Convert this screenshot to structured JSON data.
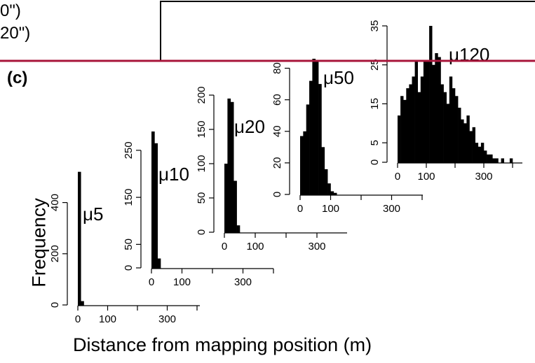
{
  "header": {
    "fragment_line1": "0\")",
    "fragment_line2": "20\")",
    "accent_line_color": "#a8153a"
  },
  "panel_label": "(c)",
  "ylabel": "Frequency",
  "xlabel": "Distance from mapping position (m)",
  "chart_data": [
    {
      "type": "bar",
      "name": "μ5",
      "title": "μ5",
      "bin_width": 10,
      "x": [
        0,
        10
      ],
      "values": [
        520,
        15
      ],
      "xlim": [
        0,
        400
      ],
      "ylim": [
        0,
        530
      ],
      "xticks": [
        0,
        100,
        300
      ],
      "xtick_labels": [
        "0",
        "100",
        "300"
      ],
      "yticks": [
        0,
        200,
        400
      ],
      "ytick_labels": [
        "0",
        "200",
        "400"
      ]
    },
    {
      "type": "bar",
      "name": "μ10",
      "title": "μ10",
      "bin_width": 10,
      "x": [
        0,
        10,
        20
      ],
      "values": [
        290,
        265,
        20
      ],
      "xlim": [
        0,
        400
      ],
      "ylim": [
        0,
        290
      ],
      "xticks": [
        0,
        100,
        300
      ],
      "xtick_labels": [
        "0",
        "100",
        "300"
      ],
      "yticks": [
        0,
        50,
        150,
        250
      ],
      "ytick_labels": [
        "0",
        "50",
        "150",
        "250"
      ]
    },
    {
      "type": "bar",
      "name": "μ20",
      "title": "μ20",
      "bin_width": 10,
      "x": [
        0,
        10,
        20,
        30,
        40
      ],
      "values": [
        100,
        195,
        190,
        75,
        10
      ],
      "xlim": [
        0,
        400
      ],
      "ylim": [
        0,
        200
      ],
      "xticks": [
        0,
        100,
        300
      ],
      "xtick_labels": [
        "0",
        "100",
        "300"
      ],
      "yticks": [
        0,
        50,
        100,
        150,
        200
      ],
      "ytick_labels": [
        "0",
        "50",
        "100",
        "150",
        "200"
      ]
    },
    {
      "type": "bar",
      "name": "μ50",
      "title": "μ50",
      "bin_width": 10,
      "x": [
        0,
        10,
        20,
        30,
        40,
        50,
        60,
        70,
        80,
        90,
        100,
        110
      ],
      "values": [
        37,
        40,
        57,
        72,
        86,
        85,
        70,
        30,
        16,
        7,
        2,
        1
      ],
      "xlim": [
        0,
        400
      ],
      "ylim": [
        0,
        86
      ],
      "xticks": [
        0,
        100,
        300
      ],
      "xtick_labels": [
        "0",
        "100",
        "300"
      ],
      "yticks": [
        0,
        20,
        40,
        60,
        80
      ],
      "ytick_labels": [
        "0",
        "20",
        "40",
        "60",
        "80"
      ]
    },
    {
      "type": "bar",
      "name": "μ120",
      "title": "μ120",
      "bin_width": 10,
      "x": [
        0,
        10,
        20,
        30,
        40,
        50,
        60,
        70,
        80,
        90,
        100,
        110,
        120,
        130,
        140,
        150,
        160,
        170,
        180,
        190,
        200,
        210,
        220,
        230,
        240,
        250,
        260,
        270,
        280,
        290,
        300,
        310,
        320,
        330,
        340,
        350,
        360,
        370,
        380,
        390
      ],
      "values": [
        12,
        17,
        16,
        19,
        20,
        22,
        26,
        18,
        22,
        26,
        26,
        35,
        25,
        28,
        27,
        20,
        18,
        15,
        22,
        19,
        17,
        14,
        11,
        10,
        12,
        8,
        9,
        5,
        4,
        5,
        3,
        2,
        2,
        1,
        1,
        0,
        1,
        0,
        0,
        1
      ],
      "xlim": [
        0,
        400
      ],
      "ylim": [
        0,
        35
      ],
      "xticks": [
        0,
        100,
        300
      ],
      "xtick_labels": [
        "0",
        "100",
        "300"
      ],
      "yticks": [
        0,
        5,
        15,
        25,
        35
      ],
      "ytick_labels": [
        "0",
        "5",
        "15",
        "25",
        "35"
      ]
    }
  ]
}
